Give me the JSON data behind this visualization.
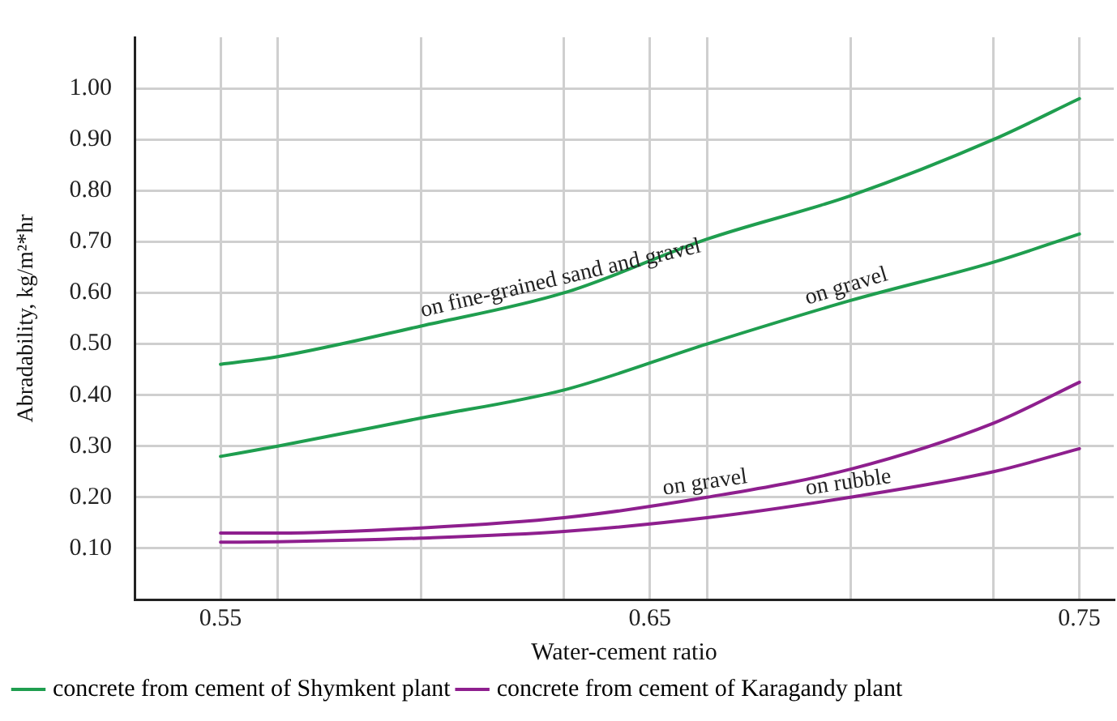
{
  "chart_data": {
    "type": "line",
    "xlabel": "Water-cement ratio",
    "ylabel": "Abradability, kg/m²*hr",
    "x": [
      0.55,
      0.5633,
      0.5967,
      0.63,
      0.6633,
      0.6967,
      0.73,
      0.75
    ],
    "series": [
      {
        "name": "concrete from cement of Shymkent plant",
        "color": "#1f9e4f",
        "values": [
          0.46,
          0.475,
          0.535,
          0.6,
          0.705,
          0.79,
          0.9,
          0.98
        ]
      },
      {
        "color": "#1f9e4f",
        "values": [
          0.28,
          0.3,
          0.355,
          0.41,
          0.5,
          0.585,
          0.66,
          0.715
        ]
      },
      {
        "name": "concrete from cement of Karagandy plant",
        "color": "#8e1f8e",
        "values": [
          0.13,
          0.13,
          0.14,
          0.16,
          0.2,
          0.255,
          0.345,
          0.425
        ]
      },
      {
        "color": "#8e1f8e",
        "values": [
          0.112,
          0.113,
          0.12,
          0.133,
          0.16,
          0.2,
          0.25,
          0.295
        ]
      }
    ],
    "xlim": [
      0.53,
      0.758
    ],
    "xticks": [
      0.55,
      {
        "value": 0.5633,
        "label": null
      },
      {
        "value": 0.5967,
        "label": null
      },
      {
        "value": 0.63,
        "label": null
      },
      0.65,
      {
        "value": 0.6633,
        "label": null
      },
      {
        "value": 0.6967,
        "label": null
      },
      {
        "value": 0.73,
        "label": null
      },
      0.75
    ],
    "ylim": [
      0,
      1.1
    ],
    "yticks": [
      {
        "value": 0.1,
        "label": "0.10"
      },
      {
        "value": 0.2,
        "label": "0.20"
      },
      {
        "value": 0.3,
        "label": "0.30"
      },
      {
        "value": 0.4,
        "label": "0.40"
      },
      {
        "value": 0.5,
        "label": "0.50"
      },
      {
        "value": 0.6,
        "label": "0.60"
      },
      {
        "value": 0.7,
        "label": "0.70"
      },
      {
        "value": 0.8,
        "label": "0.80"
      },
      {
        "value": 0.9,
        "label": "0.90"
      },
      {
        "value": 1.0,
        "label": "1.00"
      }
    ],
    "annotations": [
      {
        "text": "on fine-grained sand and gravel",
        "x": 0.63,
        "y": 0.6
      },
      {
        "text": "on gravel",
        "x": 0.6967,
        "y": 0.585
      },
      {
        "text": "on gravel",
        "x": 0.6633,
        "y": 0.2
      },
      {
        "text": "on rubble",
        "x": 0.6967,
        "y": 0.2
      }
    ],
    "grid": true,
    "legend": "bottom",
    "marker": "none",
    "line_style": "solid"
  }
}
